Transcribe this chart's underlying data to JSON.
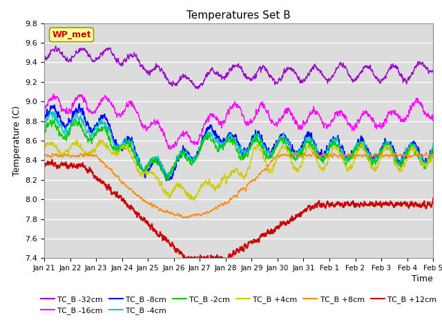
{
  "title": "Temperatures Set B",
  "xlabel": "Time",
  "ylabel": "Temperature (C)",
  "ylim": [
    7.4,
    9.8
  ],
  "yticks": [
    7.4,
    7.6,
    7.8,
    8.0,
    8.2,
    8.4,
    8.6,
    8.8,
    9.0,
    9.2,
    9.4,
    9.6,
    9.8
  ],
  "xtick_labels": [
    "Jan 21",
    "Jan 22",
    "Jan 23",
    "Jan 24",
    "Jan 25",
    "Jan 26",
    "Jan 27",
    "Jan 28",
    "Jan 29",
    "Jan 30",
    "Jan 31",
    "Feb 1",
    "Feb 2",
    "Feb 3",
    "Feb 4",
    "Feb 5"
  ],
  "legend_entries": [
    {
      "label": "TC_B -32cm",
      "color": "#9900cc"
    },
    {
      "label": "TC_B -16cm",
      "color": "#ff00ff"
    },
    {
      "label": "TC_B -8cm",
      "color": "#0000ff"
    },
    {
      "label": "TC_B -4cm",
      "color": "#00cccc"
    },
    {
      "label": "TC_B -2cm",
      "color": "#00cc00"
    },
    {
      "label": "TC_B +4cm",
      "color": "#cccc00"
    },
    {
      "label": "TC_B +8cm",
      "color": "#ff8800"
    },
    {
      "label": "TC_B +12cm",
      "color": "#cc0000"
    }
  ],
  "wp_met_label": "WP_met",
  "wp_met_color": "#cc0000",
  "wp_met_bg": "#ffff99",
  "plot_bg": "#dcdcdc",
  "n_points": 2000
}
